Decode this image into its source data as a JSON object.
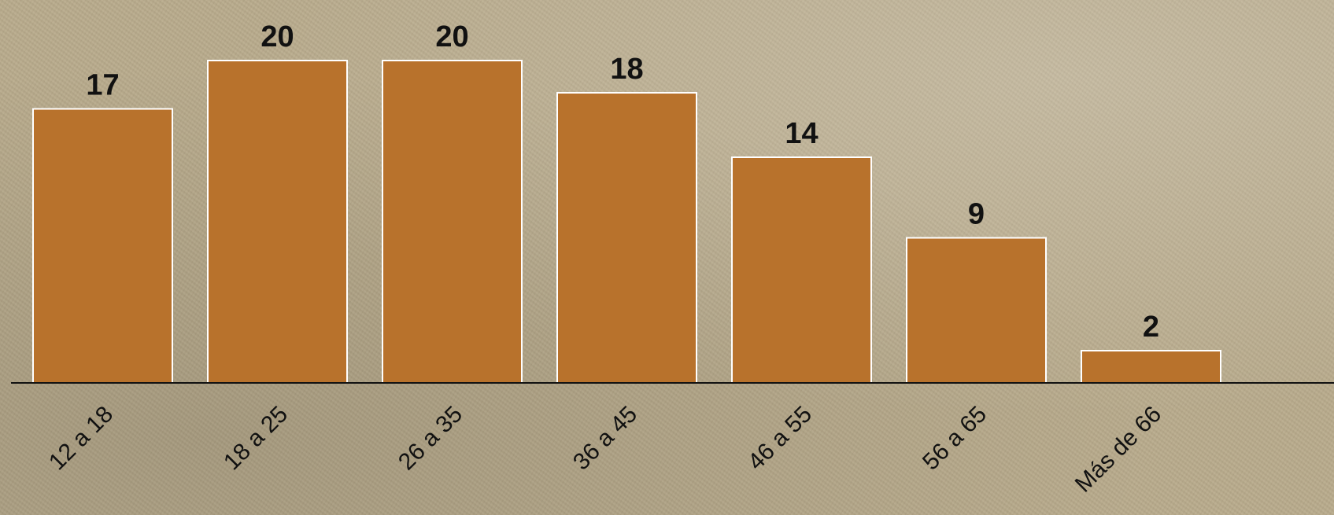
{
  "chart_data": {
    "type": "bar",
    "categories": [
      "12 a 18",
      "18 a 25",
      "26 a 35",
      "36 a 45",
      "46 a 55",
      "56 a 65",
      "Más de 66"
    ],
    "values": [
      17,
      20,
      20,
      18,
      14,
      9,
      2
    ],
    "title": "",
    "xlabel": "",
    "ylabel": "",
    "ylim": [
      0,
      24
    ],
    "grid": false,
    "legend": "none",
    "data_labels": true,
    "colors": {
      "bar_fill": "#b8722c",
      "bar_edge": "#ffffff",
      "axis": "#111111",
      "label_text": "#111111"
    }
  }
}
